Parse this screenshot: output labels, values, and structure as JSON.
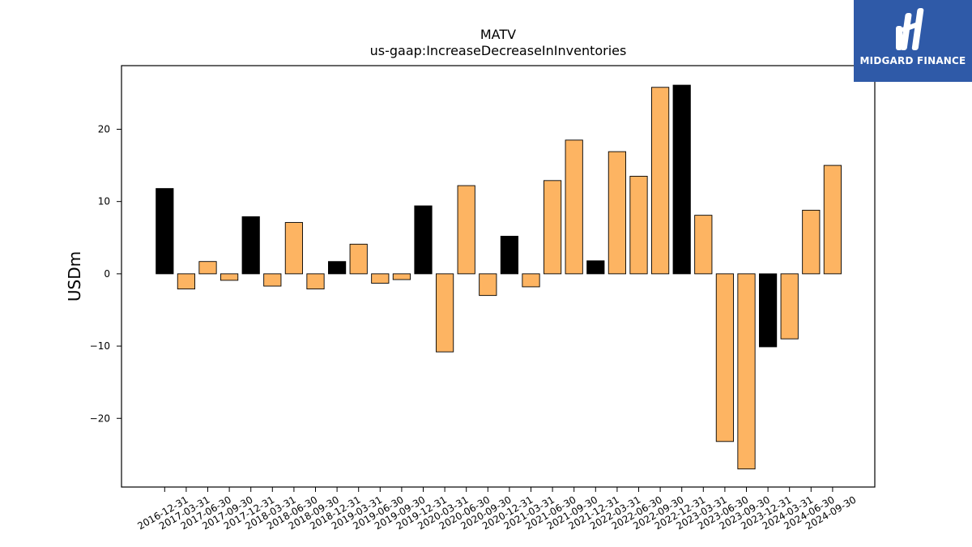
{
  "brand": {
    "name": "MIDGARD FINANCE",
    "bg_color": "#2f5aa8"
  },
  "chart_data": {
    "type": "bar",
    "title": "MATV",
    "subtitle": "us-gaap:IncreaseDecreaseInInventories",
    "ylabel": "USDm",
    "xlabel": "",
    "ylim": [
      -29.5,
      28.8
    ],
    "yticks": [
      -20,
      -10,
      0,
      10,
      20
    ],
    "ytick_labels": [
      "−20",
      "−10",
      "0",
      "10",
      "20"
    ],
    "grid": false,
    "colors": {
      "q4": "#000000",
      "other": "#fdb462",
      "edge": "#000000"
    },
    "categories": [
      "2016-12-31",
      "2017-03-31",
      "2017-06-30",
      "2017-09-30",
      "2017-12-31",
      "2018-03-31",
      "2018-06-30",
      "2018-09-30",
      "2018-12-31",
      "2019-03-31",
      "2019-06-30",
      "2019-09-30",
      "2019-12-31",
      "2020-03-31",
      "2020-06-30",
      "2020-09-30",
      "2020-12-31",
      "2021-03-31",
      "2021-06-30",
      "2021-09-30",
      "2021-12-31",
      "2022-03-31",
      "2022-06-30",
      "2022-09-30",
      "2022-12-31",
      "2023-03-31",
      "2023-06-30",
      "2023-09-30",
      "2023-12-31",
      "2024-03-31",
      "2024-06-30",
      "2024-09-30"
    ],
    "values": [
      11.8,
      -2.1,
      1.7,
      -0.9,
      7.9,
      -1.7,
      7.1,
      -2.1,
      1.7,
      4.1,
      -1.3,
      -0.8,
      9.4,
      -10.8,
      12.2,
      -3.0,
      5.2,
      -1.8,
      12.9,
      18.5,
      1.8,
      16.9,
      13.5,
      25.8,
      26.1,
      8.1,
      -23.2,
      -27.0,
      -10.1,
      -9.0,
      8.8,
      15.0
    ]
  }
}
